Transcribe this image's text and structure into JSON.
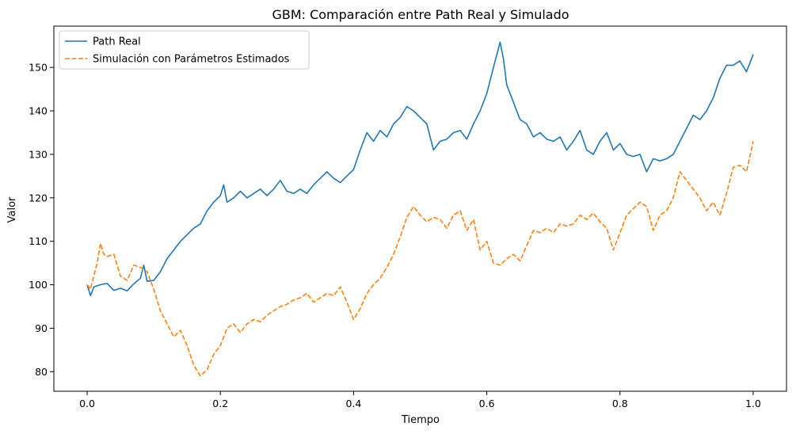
{
  "chart_data": {
    "type": "line",
    "title": "GBM: Comparación entre Path Real y Simulado",
    "xlabel": "Tiempo",
    "ylabel": "Valor",
    "xlim": [
      -0.05,
      1.05
    ],
    "ylim": [
      75.5,
      159.5
    ],
    "xticks": [
      0.0,
      0.2,
      0.4,
      0.6,
      0.8,
      1.0
    ],
    "xtick_labels": [
      "0.0",
      "0.2",
      "0.4",
      "0.6",
      "0.8",
      "1.0"
    ],
    "yticks": [
      80,
      90,
      100,
      110,
      120,
      130,
      140,
      150
    ],
    "ytick_labels": [
      "80",
      "90",
      "100",
      "110",
      "120",
      "130",
      "140",
      "150"
    ],
    "grid": false,
    "legend_position": "top-left",
    "series": [
      {
        "name": "Path Real",
        "color": "#1f77b4",
        "style": "solid",
        "points": [
          [
            0.0,
            100.0
          ],
          [
            0.005,
            97.5
          ],
          [
            0.01,
            99.5
          ],
          [
            0.02,
            100.0
          ],
          [
            0.03,
            100.3
          ],
          [
            0.04,
            98.7
          ],
          [
            0.05,
            99.2
          ],
          [
            0.06,
            98.6
          ],
          [
            0.07,
            100.2
          ],
          [
            0.08,
            101.5
          ],
          [
            0.085,
            104.5
          ],
          [
            0.09,
            100.8
          ],
          [
            0.1,
            101.0
          ],
          [
            0.11,
            103.0
          ],
          [
            0.12,
            106.0
          ],
          [
            0.13,
            108.0
          ],
          [
            0.14,
            110.0
          ],
          [
            0.15,
            111.5
          ],
          [
            0.16,
            113.0
          ],
          [
            0.17,
            114.0
          ],
          [
            0.18,
            117.0
          ],
          [
            0.19,
            119.0
          ],
          [
            0.2,
            120.5
          ],
          [
            0.205,
            123.0
          ],
          [
            0.21,
            119.0
          ],
          [
            0.22,
            120.0
          ],
          [
            0.23,
            121.5
          ],
          [
            0.24,
            120.0
          ],
          [
            0.25,
            121.0
          ],
          [
            0.26,
            122.0
          ],
          [
            0.27,
            120.5
          ],
          [
            0.28,
            122.0
          ],
          [
            0.29,
            124.0
          ],
          [
            0.3,
            121.5
          ],
          [
            0.31,
            121.0
          ],
          [
            0.32,
            122.0
          ],
          [
            0.33,
            121.0
          ],
          [
            0.34,
            123.0
          ],
          [
            0.35,
            124.5
          ],
          [
            0.36,
            126.0
          ],
          [
            0.37,
            124.5
          ],
          [
            0.38,
            123.5
          ],
          [
            0.39,
            125.0
          ],
          [
            0.4,
            126.5
          ],
          [
            0.41,
            131.0
          ],
          [
            0.42,
            135.0
          ],
          [
            0.43,
            133.0
          ],
          [
            0.44,
            135.5
          ],
          [
            0.45,
            134.0
          ],
          [
            0.46,
            137.0
          ],
          [
            0.47,
            138.5
          ],
          [
            0.48,
            141.0
          ],
          [
            0.49,
            140.0
          ],
          [
            0.5,
            138.5
          ],
          [
            0.51,
            137.0
          ],
          [
            0.52,
            131.0
          ],
          [
            0.53,
            133.0
          ],
          [
            0.54,
            133.5
          ],
          [
            0.55,
            135.0
          ],
          [
            0.56,
            135.5
          ],
          [
            0.57,
            133.5
          ],
          [
            0.58,
            137.0
          ],
          [
            0.59,
            140.0
          ],
          [
            0.6,
            144.0
          ],
          [
            0.61,
            150.0
          ],
          [
            0.62,
            155.8
          ],
          [
            0.625,
            152.0
          ],
          [
            0.63,
            146.0
          ],
          [
            0.64,
            142.0
          ],
          [
            0.65,
            138.0
          ],
          [
            0.66,
            137.0
          ],
          [
            0.67,
            134.0
          ],
          [
            0.68,
            135.0
          ],
          [
            0.69,
            133.5
          ],
          [
            0.7,
            133.0
          ],
          [
            0.71,
            134.0
          ],
          [
            0.72,
            131.0
          ],
          [
            0.73,
            133.0
          ],
          [
            0.74,
            135.5
          ],
          [
            0.75,
            131.0
          ],
          [
            0.76,
            130.0
          ],
          [
            0.77,
            133.0
          ],
          [
            0.78,
            135.0
          ],
          [
            0.79,
            131.0
          ],
          [
            0.8,
            132.5
          ],
          [
            0.81,
            130.0
          ],
          [
            0.82,
            129.5
          ],
          [
            0.83,
            130.0
          ],
          [
            0.84,
            126.0
          ],
          [
            0.85,
            129.0
          ],
          [
            0.86,
            128.5
          ],
          [
            0.87,
            129.0
          ],
          [
            0.88,
            130.0
          ],
          [
            0.89,
            133.0
          ],
          [
            0.9,
            136.0
          ],
          [
            0.91,
            139.0
          ],
          [
            0.92,
            138.0
          ],
          [
            0.93,
            140.0
          ],
          [
            0.94,
            143.0
          ],
          [
            0.95,
            147.5
          ],
          [
            0.96,
            150.5
          ],
          [
            0.97,
            150.5
          ],
          [
            0.98,
            151.5
          ],
          [
            0.99,
            149.0
          ],
          [
            1.0,
            153.0
          ]
        ]
      },
      {
        "name": "Simulación con Parámetros Estimados",
        "color": "#ff7f0e",
        "style": "dashed",
        "points": [
          [
            0.0,
            100.0
          ],
          [
            0.005,
            99.0
          ],
          [
            0.01,
            102.0
          ],
          [
            0.015,
            105.0
          ],
          [
            0.02,
            109.5
          ],
          [
            0.025,
            107.0
          ],
          [
            0.03,
            106.5
          ],
          [
            0.04,
            107.0
          ],
          [
            0.05,
            102.0
          ],
          [
            0.06,
            101.0
          ],
          [
            0.07,
            104.5
          ],
          [
            0.08,
            104.0
          ],
          [
            0.09,
            103.0
          ],
          [
            0.1,
            99.0
          ],
          [
            0.11,
            94.0
          ],
          [
            0.12,
            91.0
          ],
          [
            0.13,
            88.0
          ],
          [
            0.14,
            89.5
          ],
          [
            0.15,
            86.0
          ],
          [
            0.16,
            81.5
          ],
          [
            0.17,
            79.0
          ],
          [
            0.18,
            80.5
          ],
          [
            0.19,
            84.0
          ],
          [
            0.2,
            86.0
          ],
          [
            0.21,
            90.0
          ],
          [
            0.22,
            91.0
          ],
          [
            0.23,
            89.0
          ],
          [
            0.24,
            91.0
          ],
          [
            0.25,
            92.0
          ],
          [
            0.26,
            91.5
          ],
          [
            0.27,
            93.0
          ],
          [
            0.28,
            94.0
          ],
          [
            0.29,
            95.0
          ],
          [
            0.3,
            95.5
          ],
          [
            0.31,
            96.5
          ],
          [
            0.32,
            97.0
          ],
          [
            0.33,
            98.0
          ],
          [
            0.34,
            96.0
          ],
          [
            0.35,
            97.0
          ],
          [
            0.36,
            98.0
          ],
          [
            0.37,
            97.5
          ],
          [
            0.38,
            99.5
          ],
          [
            0.39,
            96.0
          ],
          [
            0.4,
            92.0
          ],
          [
            0.41,
            94.5
          ],
          [
            0.42,
            98.0
          ],
          [
            0.43,
            100.0
          ],
          [
            0.44,
            101.5
          ],
          [
            0.45,
            104.0
          ],
          [
            0.46,
            107.0
          ],
          [
            0.47,
            111.0
          ],
          [
            0.48,
            115.5
          ],
          [
            0.49,
            118.0
          ],
          [
            0.5,
            116.0
          ],
          [
            0.51,
            114.5
          ],
          [
            0.52,
            115.5
          ],
          [
            0.53,
            115.0
          ],
          [
            0.54,
            113.0
          ],
          [
            0.55,
            116.0
          ],
          [
            0.56,
            117.0
          ],
          [
            0.57,
            112.5
          ],
          [
            0.58,
            115.0
          ],
          [
            0.59,
            108.0
          ],
          [
            0.6,
            110.0
          ],
          [
            0.61,
            105.0
          ],
          [
            0.62,
            104.5
          ],
          [
            0.63,
            106.0
          ],
          [
            0.64,
            107.0
          ],
          [
            0.65,
            105.5
          ],
          [
            0.66,
            109.0
          ],
          [
            0.67,
            112.5
          ],
          [
            0.68,
            112.0
          ],
          [
            0.69,
            113.0
          ],
          [
            0.7,
            112.0
          ],
          [
            0.71,
            114.0
          ],
          [
            0.72,
            113.5
          ],
          [
            0.73,
            114.0
          ],
          [
            0.74,
            116.0
          ],
          [
            0.75,
            115.0
          ],
          [
            0.76,
            116.5
          ],
          [
            0.77,
            114.5
          ],
          [
            0.78,
            113.0
          ],
          [
            0.79,
            108.0
          ],
          [
            0.8,
            112.0
          ],
          [
            0.81,
            116.0
          ],
          [
            0.82,
            117.5
          ],
          [
            0.83,
            119.0
          ],
          [
            0.84,
            118.0
          ],
          [
            0.85,
            112.5
          ],
          [
            0.86,
            116.0
          ],
          [
            0.87,
            117.0
          ],
          [
            0.88,
            120.0
          ],
          [
            0.89,
            126.0
          ],
          [
            0.9,
            124.0
          ],
          [
            0.91,
            122.0
          ],
          [
            0.92,
            120.0
          ],
          [
            0.93,
            117.0
          ],
          [
            0.94,
            119.0
          ],
          [
            0.95,
            116.0
          ],
          [
            0.96,
            121.0
          ],
          [
            0.97,
            127.0
          ],
          [
            0.98,
            127.5
          ],
          [
            0.99,
            126.0
          ],
          [
            1.0,
            133.0
          ]
        ]
      }
    ]
  }
}
